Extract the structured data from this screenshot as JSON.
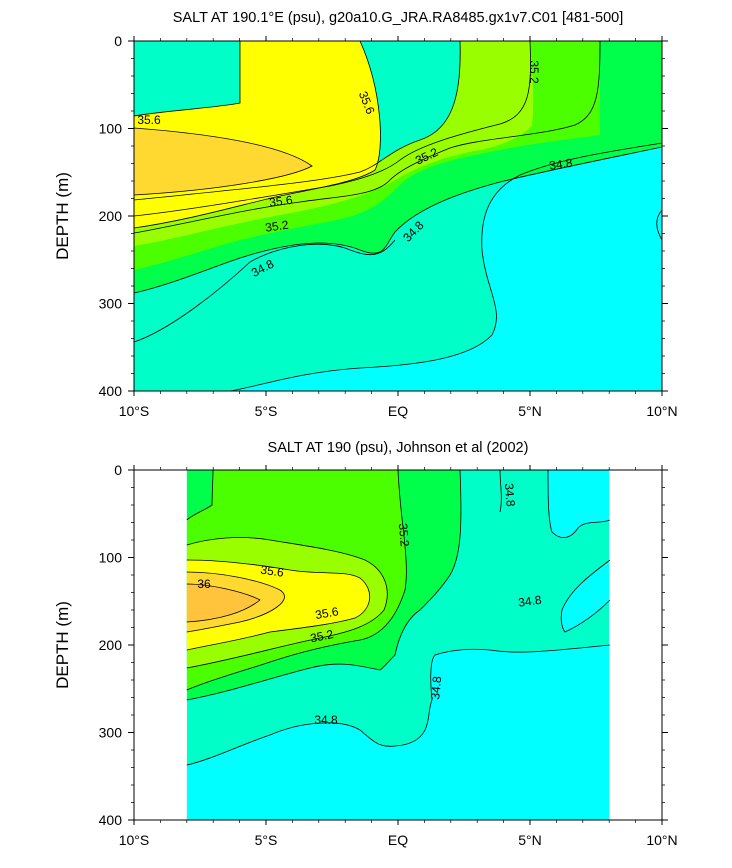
{
  "figure": {
    "background": "#ffffff"
  },
  "chart_data": [
    {
      "type": "heatmap",
      "title": "SALT AT 190.1°E (psu), g20a10.G_JRA.RA8485.gx1v7.C01 [481-500]",
      "ylabel": "DEPTH (m)",
      "xlabel": "",
      "x_range": [
        -10,
        10
      ],
      "y_range": [
        0,
        400
      ],
      "y_inverted": true,
      "x_ticks": [
        {
          "value": -10,
          "label": "10°S"
        },
        {
          "value": -5,
          "label": "5°S"
        },
        {
          "value": 0,
          "label": "EQ"
        },
        {
          "value": 5,
          "label": "5°N"
        },
        {
          "value": 10,
          "label": "10°N"
        }
      ],
      "y_ticks": [
        {
          "value": 0,
          "label": "0"
        },
        {
          "value": 100,
          "label": "100"
        },
        {
          "value": 200,
          "label": "200"
        },
        {
          "value": 300,
          "label": "300"
        },
        {
          "value": 400,
          "label": "400"
        }
      ],
      "data_extent_x": [
        -10,
        10
      ],
      "levels": [
        {
          "range": "<34.8",
          "color": "#00ffff"
        },
        {
          "range": "34.8-35.0",
          "color": "#00ffc8"
        },
        {
          "range": "35.0-35.2",
          "color": "#00ff4a"
        },
        {
          "range": "35.2-35.4",
          "color": "#4cff00"
        },
        {
          "range": "35.4-35.6",
          "color": "#99ff00"
        },
        {
          "range": "35.6-35.8",
          "color": "#ffff00"
        },
        {
          "range": "35.8-36.0",
          "color": "#ffd830"
        },
        {
          "range": ">36.0",
          "color": "#ffc43b"
        }
      ],
      "contour_labels": [
        {
          "text": "35.6",
          "x": -9.3,
          "y": 82,
          "angle": 0
        },
        {
          "text": "35.6",
          "x": -1.3,
          "y": 68,
          "angle": 68
        },
        {
          "text": "35.2",
          "x": 5.1,
          "y": 35,
          "angle": 90
        },
        {
          "text": "35.2",
          "x": 0.3,
          "y": 131,
          "angle": -25
        },
        {
          "text": "34.8",
          "x": 6.6,
          "y": 140,
          "angle": -8
        },
        {
          "text": "35.6",
          "x": -4.1,
          "y": 181,
          "angle": -7
        },
        {
          "text": "35.2",
          "x": -4.3,
          "y": 210,
          "angle": -8
        },
        {
          "text": "34.8",
          "x": 0.4,
          "y": 217,
          "angle": -45
        },
        {
          "text": "34.8",
          "x": -5.2,
          "y": 259,
          "angle": -28
        }
      ]
    },
    {
      "type": "heatmap",
      "title": "SALT AT 190 (psu), Johnson et al (2002)",
      "ylabel": "DEPTH (m)",
      "xlabel": "",
      "x_range": [
        -10,
        10
      ],
      "y_range": [
        0,
        400
      ],
      "y_inverted": true,
      "x_ticks": [
        {
          "value": -10,
          "label": "10°S"
        },
        {
          "value": -5,
          "label": "5°S"
        },
        {
          "value": 0,
          "label": "EQ"
        },
        {
          "value": 5,
          "label": "5°N"
        },
        {
          "value": 10,
          "label": "10°N"
        }
      ],
      "y_ticks": [
        {
          "value": 0,
          "label": "0"
        },
        {
          "value": 100,
          "label": "100"
        },
        {
          "value": 200,
          "label": "200"
        },
        {
          "value": 300,
          "label": "300"
        },
        {
          "value": 400,
          "label": "400"
        }
      ],
      "data_extent_x": [
        -8,
        8
      ],
      "levels": [
        {
          "range": "<34.8",
          "color": "#00ffff"
        },
        {
          "range": "34.8-35.0",
          "color": "#00ffc8"
        },
        {
          "range": "35.0-35.2",
          "color": "#00ff4a"
        },
        {
          "range": "35.2-35.4",
          "color": "#4cff00"
        },
        {
          "range": "35.4-35.6",
          "color": "#99ff00"
        },
        {
          "range": "35.6-35.8",
          "color": "#ffff00"
        },
        {
          "range": "35.8-36.0",
          "color": "#ffd830"
        },
        {
          "range": ">36.0",
          "color": "#ffc43b"
        }
      ],
      "contour_labels": [
        {
          "text": "36",
          "x": -8.5,
          "y": 132,
          "angle": 0
        },
        {
          "text": "35.6",
          "x": -5.0,
          "y": 116,
          "angle": 8
        },
        {
          "text": "35.2",
          "x": 0.2,
          "y": 74,
          "angle": 85
        },
        {
          "text": "34.8",
          "x": 4.2,
          "y": 27,
          "angle": 85
        },
        {
          "text": "34.8",
          "x": 5.0,
          "y": 155,
          "angle": -8
        },
        {
          "text": "35.6",
          "x": -2.7,
          "y": 165,
          "angle": -10
        },
        {
          "text": "35.2",
          "x": -2.9,
          "y": 192,
          "angle": -12
        },
        {
          "text": "34.8",
          "x": 1.4,
          "y": 250,
          "angle": -85
        },
        {
          "text": "34.8",
          "x": -2.6,
          "y": 290,
          "angle": 0
        }
      ]
    }
  ]
}
